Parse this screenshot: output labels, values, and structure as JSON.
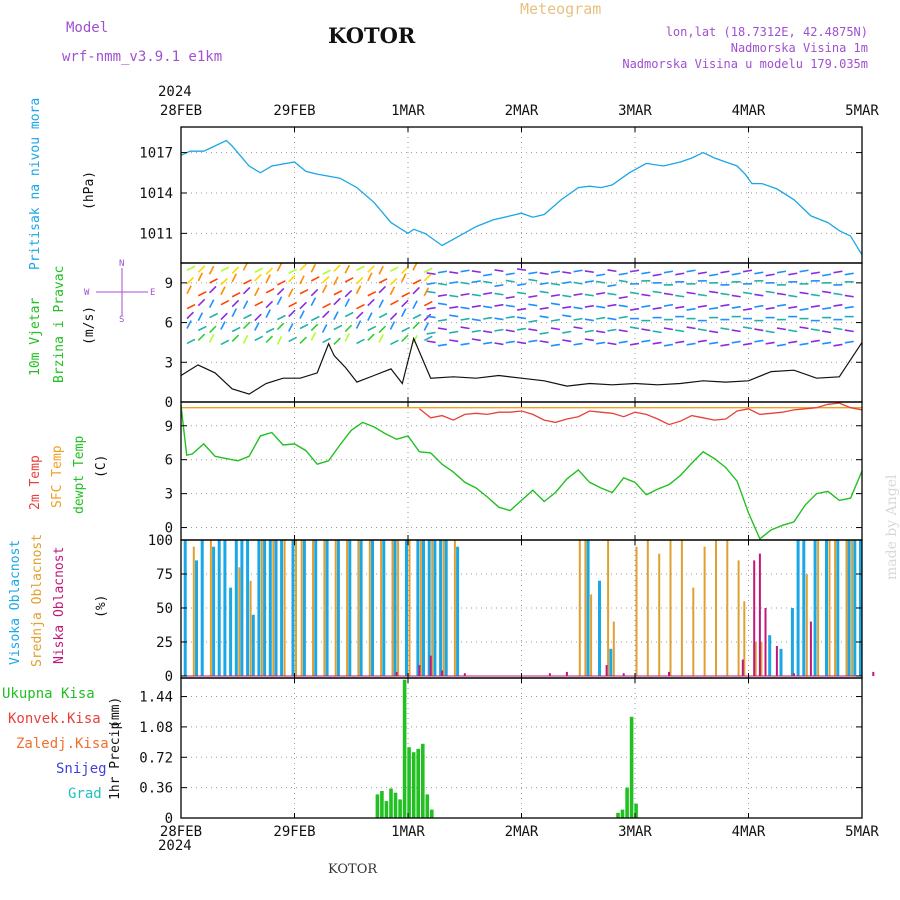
{
  "header": {
    "model_label": "Model",
    "model_name": "wrf-nmm_v3.9.1 e1km",
    "station": "KOTOR",
    "meteogram_title": "Meteogram",
    "lonlat": "lon,lat (18.7312E, 42.4875N)",
    "elevation": "Nadmorska Visina 1m",
    "model_elevation": "Nadmorska Visina u modelu 179.035m",
    "year_top": "2024",
    "year_bottom": "2024",
    "footer_station": "KOTOR",
    "watermark": "made by Angel"
  },
  "colors": {
    "pressure": "#1aa7e6",
    "temp2m": "#e8403a",
    "sfc_temp": "#f0a020",
    "dewpt": "#22c022",
    "high_cloud": "#1aa7e6",
    "mid_cloud": "#e0a030",
    "low_cloud": "#c0187a",
    "total_precip": "#22c022",
    "conv_precip": "#e8403a",
    "frozen_precip": "#f07030",
    "snow": "#4040e0",
    "hail": "#20c0c0",
    "model_text": "#a050d0",
    "meteogram_text": "#e8c080"
  },
  "chart_data": [
    {
      "type": "line",
      "panel": "pressure",
      "ylabel": "Pritisak na nivou mora",
      "yunit": "(hPa)",
      "yticks": [
        1011,
        1014,
        1017
      ],
      "ylim": [
        1008.8,
        1018.9
      ],
      "x_ticks": [
        "28FEB",
        "29FEB",
        "1MAR",
        "2MAR",
        "3MAR",
        "4MAR",
        "5MAR"
      ],
      "grid": true,
      "series": [
        {
          "x": [
            0,
            0.08,
            0.2,
            0.3,
            0.4,
            0.45,
            0.6,
            0.7,
            0.8,
            1.0,
            1.1,
            1.2,
            1.4,
            1.55,
            1.7,
            1.85,
            2.0,
            2.05,
            2.15,
            2.3,
            2.45,
            2.6,
            2.75,
            2.9,
            3.0,
            3.1,
            3.2,
            3.35,
            3.5,
            3.6,
            3.7,
            3.8,
            3.95,
            4.1,
            4.25,
            4.4,
            4.5,
            4.6,
            4.7,
            4.8,
            4.9,
            4.97,
            5.03,
            5.12,
            5.25,
            5.4,
            5.55,
            5.7,
            5.8,
            5.9,
            6.0
          ],
          "y": [
            1016.8,
            1017.1,
            1017.1,
            1017.5,
            1017.9,
            1017.5,
            1016.0,
            1015.5,
            1016.0,
            1016.3,
            1015.6,
            1015.4,
            1015.1,
            1014.4,
            1013.3,
            1011.8,
            1011.0,
            1011.3,
            1011.0,
            1010.1,
            1010.8,
            1011.5,
            1012.0,
            1012.3,
            1012.5,
            1012.2,
            1012.4,
            1013.5,
            1014.4,
            1014.5,
            1014.4,
            1014.6,
            1015.5,
            1016.2,
            1016.0,
            1016.3,
            1016.6,
            1017.0,
            1016.6,
            1016.3,
            1016.0,
            1015.4,
            1014.7,
            1014.7,
            1014.3,
            1013.5,
            1012.3,
            1011.8,
            1011.2,
            1010.8,
            1009.4
          ]
        }
      ]
    },
    {
      "type": "line",
      "panel": "wind",
      "ylabel": [
        "10m Vjetar",
        "Brzina i Pravac"
      ],
      "yunit": "(m/s)",
      "yticks": [
        0,
        3,
        6,
        9
      ],
      "ylim": [
        0,
        10.5
      ],
      "compass": {
        "n": "N",
        "s": "S",
        "w": "W",
        "e": "E"
      },
      "grid": true,
      "series": [
        {
          "name": "speed",
          "x": [
            0,
            0.15,
            0.3,
            0.45,
            0.6,
            0.75,
            0.9,
            1.05,
            1.2,
            1.3,
            1.35,
            1.45,
            1.55,
            1.7,
            1.85,
            1.95,
            2.05,
            2.2,
            2.4,
            2.6,
            2.8,
            3.0,
            3.2,
            3.4,
            3.6,
            3.8,
            4.0,
            4.2,
            4.4,
            4.6,
            4.8,
            5.0,
            5.2,
            5.4,
            5.6,
            5.8,
            6.0
          ],
          "y": [
            2.0,
            2.8,
            2.2,
            1.0,
            0.6,
            1.4,
            1.8,
            1.8,
            2.2,
            4.4,
            3.5,
            2.6,
            1.5,
            2.0,
            2.5,
            1.4,
            4.8,
            1.8,
            1.9,
            1.8,
            2.0,
            1.8,
            1.6,
            1.2,
            1.4,
            1.3,
            1.4,
            1.3,
            1.4,
            1.6,
            1.5,
            1.6,
            2.3,
            2.4,
            1.8,
            1.9,
            4.5
          ]
        }
      ]
    },
    {
      "type": "line",
      "panel": "temperature",
      "ylabel": [
        "2m Temp",
        "SFC Temp",
        "dewpt Temp"
      ],
      "yunit": "(C)",
      "yticks": [
        0,
        3,
        6,
        9
      ],
      "ylim": [
        -1.1,
        11.1
      ],
      "grid": true,
      "series": [
        {
          "name": "2m Temp",
          "x": [
            2.1,
            2.2,
            2.3,
            2.4,
            2.5,
            2.6,
            2.7,
            2.8,
            2.9,
            3.0,
            3.1,
            3.2,
            3.3,
            3.4,
            3.5,
            3.6,
            3.7,
            3.8,
            3.9,
            4.0,
            4.1,
            4.2,
            4.3,
            4.4,
            4.5,
            4.6,
            4.7,
            4.8,
            4.9,
            5.0,
            5.1,
            5.2,
            5.3,
            5.4,
            5.5,
            5.6,
            5.7,
            5.8,
            5.9,
            6.0
          ],
          "y": [
            10.5,
            9.7,
            9.9,
            9.5,
            10.0,
            10.1,
            10.0,
            10.2,
            10.2,
            10.3,
            10.0,
            9.5,
            9.3,
            9.6,
            9.8,
            10.3,
            10.2,
            10.1,
            9.8,
            10.2,
            10.0,
            9.6,
            9.1,
            9.4,
            9.9,
            9.7,
            9.5,
            9.6,
            10.3,
            10.5,
            10.0,
            10.1,
            10.2,
            10.4,
            10.5,
            10.6,
            10.9,
            11.0,
            10.6,
            10.4
          ]
        },
        {
          "name": "SFC Temp",
          "x": [
            0,
            6
          ],
          "y": [
            10.6,
            10.6
          ]
        },
        {
          "name": "dewpt Temp",
          "x": [
            0,
            0.05,
            0.1,
            0.2,
            0.3,
            0.4,
            0.5,
            0.6,
            0.7,
            0.8,
            0.9,
            1.0,
            1.1,
            1.2,
            1.3,
            1.4,
            1.5,
            1.6,
            1.7,
            1.8,
            1.9,
            2.0,
            2.1,
            2.2,
            2.3,
            2.4,
            2.5,
            2.6,
            2.7,
            2.8,
            2.9,
            3.0,
            3.1,
            3.2,
            3.3,
            3.4,
            3.5,
            3.6,
            3.7,
            3.8,
            3.9,
            4.0,
            4.1,
            4.2,
            4.3,
            4.4,
            4.5,
            4.6,
            4.7,
            4.8,
            4.9,
            5.0,
            5.1,
            5.2,
            5.3,
            5.4,
            5.5,
            5.6,
            5.7,
            5.8,
            5.9,
            6.0
          ],
          "y": [
            10.8,
            6.4,
            6.5,
            7.4,
            6.3,
            6.1,
            5.9,
            6.3,
            8.1,
            8.4,
            7.3,
            7.4,
            6.8,
            5.6,
            5.9,
            7.3,
            8.6,
            9.3,
            8.9,
            8.3,
            7.8,
            8.1,
            6.7,
            6.6,
            5.6,
            4.9,
            4.0,
            3.5,
            2.7,
            1.8,
            1.5,
            2.4,
            3.3,
            2.3,
            3.1,
            4.3,
            5.1,
            4.0,
            3.5,
            3.1,
            4.4,
            4.0,
            2.9,
            3.4,
            3.8,
            4.6,
            5.7,
            6.7,
            6.1,
            5.3,
            4.1,
            1.3,
            -1.0,
            -0.2,
            0.2,
            0.5,
            2.0,
            3.0,
            3.2,
            2.4,
            2.6,
            5.0
          ]
        }
      ]
    },
    {
      "type": "bar",
      "panel": "cloud",
      "ylabel": [
        "Visoka Oblacnost",
        "Srednja Oblacnost",
        "Niska Oblacnost"
      ],
      "yunit": "(%)",
      "yticks": [
        0,
        25,
        50,
        75,
        100
      ],
      "ylim": [
        -1.5,
        100
      ],
      "grid": true,
      "series": [
        {
          "name": "Visoka Oblacnost",
          "x": [
            0.05,
            0.15,
            0.2,
            0.3,
            0.35,
            0.4,
            0.45,
            0.5,
            0.55,
            0.6,
            0.65,
            0.7,
            0.75,
            0.8,
            0.85,
            0.9,
            1.0,
            1.1,
            1.2,
            1.3,
            1.4,
            1.5,
            1.6,
            1.7,
            1.8,
            1.9,
            2.0,
            2.1,
            2.15,
            2.2,
            2.25,
            2.3,
            2.35,
            2.45,
            3.6,
            3.7,
            3.8,
            5.2,
            5.3,
            5.4,
            5.45,
            5.5,
            5.6,
            5.7,
            5.8,
            5.9,
            5.95,
            6.0
          ],
          "y": [
            100,
            85,
            100,
            95,
            100,
            100,
            65,
            100,
            100,
            100,
            45,
            100,
            100,
            100,
            100,
            100,
            100,
            100,
            100,
            100,
            100,
            100,
            100,
            100,
            100,
            100,
            100,
            100,
            100,
            100,
            100,
            100,
            100,
            95,
            100,
            70,
            20,
            30,
            20,
            50,
            100,
            100,
            100,
            100,
            100,
            100,
            100,
            100
          ]
        },
        {
          "name": "Srednja Oblacnost",
          "x": [
            0.1,
            0.25,
            0.5,
            0.6,
            0.7,
            0.8,
            0.9,
            1.0,
            1.05,
            1.15,
            1.25,
            1.35,
            1.45,
            1.55,
            1.65,
            1.75,
            1.85,
            1.9,
            2.0,
            2.1,
            2.2,
            2.3,
            2.4,
            3.5,
            3.55,
            3.6,
            3.75,
            3.8,
            4.0,
            4.1,
            4.2,
            4.3,
            4.4,
            4.5,
            4.6,
            4.7,
            4.8,
            4.9,
            4.95,
            5.05,
            5.1,
            5.5,
            5.6,
            5.7,
            5.75,
            5.85,
            5.9
          ],
          "y": [
            95,
            100,
            80,
            70,
            100,
            100,
            100,
            100,
            100,
            100,
            100,
            100,
            100,
            100,
            100,
            100,
            100,
            100,
            100,
            100,
            100,
            100,
            100,
            100,
            100,
            60,
            100,
            40,
            95,
            100,
            90,
            100,
            100,
            65,
            95,
            100,
            100,
            85,
            55,
            25,
            25,
            75,
            100,
            100,
            100,
            100,
            100
          ]
        },
        {
          "name": "Niska Oblacnost",
          "x": [
            1.9,
            2.1,
            2.2,
            2.3,
            2.5,
            3.25,
            3.4,
            3.75,
            3.9,
            4.3,
            4.95,
            5.05,
            5.1,
            5.15,
            5.25,
            5.4,
            5.55,
            6.1
          ],
          "y": [
            3,
            8,
            15,
            4,
            2,
            2,
            3,
            8,
            2,
            3,
            12,
            85,
            90,
            50,
            22,
            2,
            40,
            3
          ]
        }
      ]
    },
    {
      "type": "bar",
      "panel": "precip",
      "ylabel": "1hr Precip",
      "yunit": "(mm)",
      "yticks": [
        0,
        0.36,
        0.72,
        1.08,
        1.44
      ],
      "ylim": [
        0,
        1.66
      ],
      "legend": [
        "Ukupna Kisa",
        "Konvek.Kisa",
        "Zaledj.Kisa",
        "Snijeg",
        "Grad"
      ],
      "x_ticks": [
        "28FEB",
        "29FEB",
        "1MAR",
        "2MAR",
        "3MAR",
        "4MAR",
        "5MAR"
      ],
      "grid": true,
      "series": [
        {
          "name": "Ukupna Kisa",
          "x": [
            1.73,
            1.77,
            1.81,
            1.85,
            1.89,
            1.93,
            1.97,
            2.01,
            2.05,
            2.09,
            2.13,
            2.17,
            2.21,
            3.85,
            3.89,
            3.93,
            3.97,
            4.01
          ],
          "y": [
            0.28,
            0.32,
            0.2,
            0.35,
            0.3,
            0.22,
            1.64,
            0.84,
            0.78,
            0.82,
            0.88,
            0.28,
            0.1,
            0.06,
            0.1,
            0.36,
            1.2,
            0.17
          ]
        }
      ]
    }
  ]
}
